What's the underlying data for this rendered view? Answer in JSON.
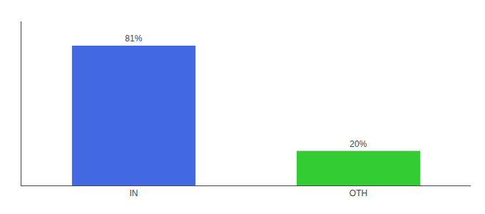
{
  "chart_data": {
    "type": "bar",
    "categories": [
      "IN",
      "OTH"
    ],
    "values": [
      81,
      20
    ],
    "value_labels": [
      "81%",
      "20%"
    ],
    "colors": [
      "#4269e1",
      "#33cc33"
    ],
    "ylim": [
      0,
      95
    ],
    "data_labels": true,
    "tick_labels": "x",
    "grid": false
  }
}
